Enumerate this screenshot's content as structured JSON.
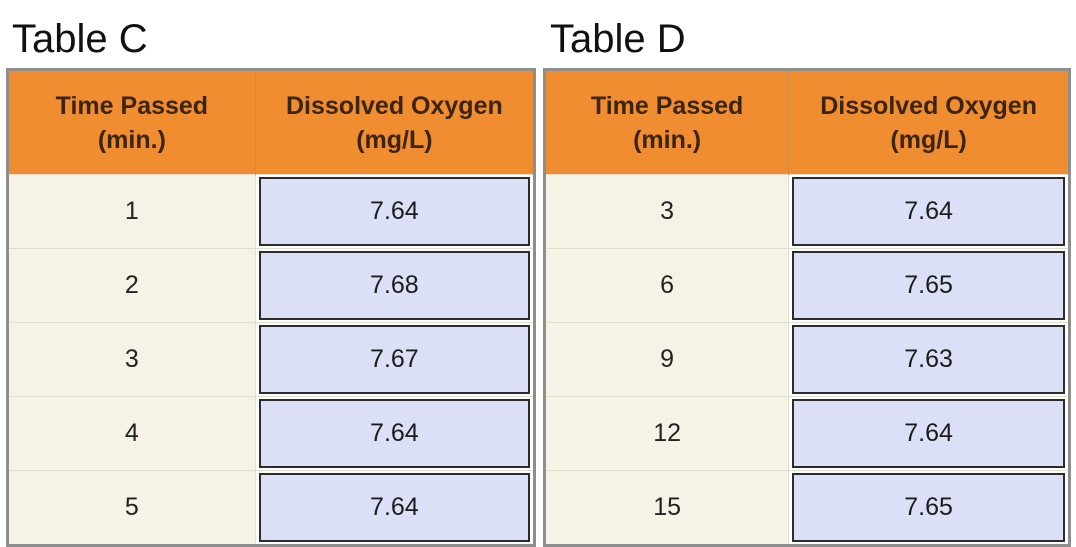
{
  "tables": [
    {
      "title": "Table C",
      "headers": {
        "time": [
          "Time Passed",
          "(min.)"
        ],
        "oxygen": [
          "Dissolved Oxygen",
          "(mg/L)"
        ]
      },
      "rows": [
        {
          "time": "1",
          "oxygen": "7.64"
        },
        {
          "time": "2",
          "oxygen": "7.68"
        },
        {
          "time": "3",
          "oxygen": "7.67"
        },
        {
          "time": "4",
          "oxygen": "7.64"
        },
        {
          "time": "5",
          "oxygen": "7.64"
        }
      ]
    },
    {
      "title": "Table D",
      "headers": {
        "time": [
          "Time Passed",
          "(min.)"
        ],
        "oxygen": [
          "Dissolved Oxygen",
          "(mg/L)"
        ]
      },
      "rows": [
        {
          "time": "3",
          "oxygen": "7.64"
        },
        {
          "time": "6",
          "oxygen": "7.65"
        },
        {
          "time": "9",
          "oxygen": "7.63"
        },
        {
          "time": "12",
          "oxygen": "7.64"
        },
        {
          "time": "15",
          "oxygen": "7.65"
        }
      ]
    }
  ],
  "colors": {
    "header_bg": "#ef8d30",
    "time_cell_bg": "#f6f2e6",
    "oxygen_cell_bg": "#dbe0f7",
    "frame_border": "#8e8e8e"
  }
}
